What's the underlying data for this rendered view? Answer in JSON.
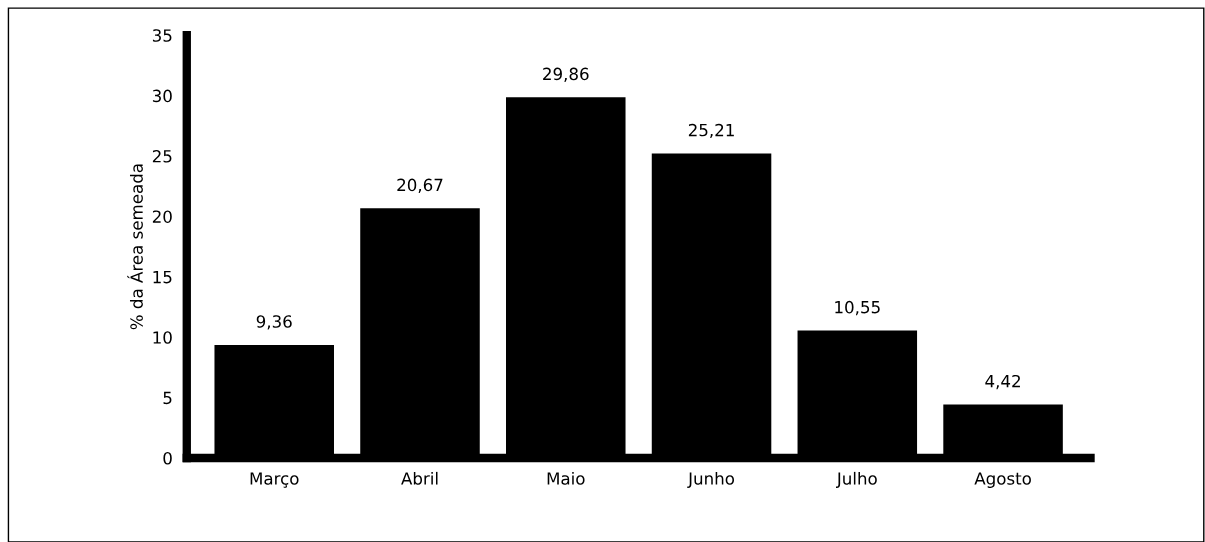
{
  "chart_data": {
    "type": "bar",
    "ylabel": "% da Área semeada",
    "categories": [
      "Março",
      "Abril",
      "Maio",
      "Junho",
      "Julho",
      "Agosto"
    ],
    "values": [
      9.36,
      20.67,
      29.86,
      25.21,
      10.55,
      4.42
    ],
    "value_labels": [
      "9,36",
      "20,67",
      "29,86",
      "25,21",
      "10,55",
      "4,42"
    ],
    "color": "#000000",
    "ylim": [
      0,
      35
    ],
    "yticks": [
      0,
      5,
      10,
      15,
      20,
      25,
      30,
      35
    ],
    "grid": false,
    "legend": false
  }
}
